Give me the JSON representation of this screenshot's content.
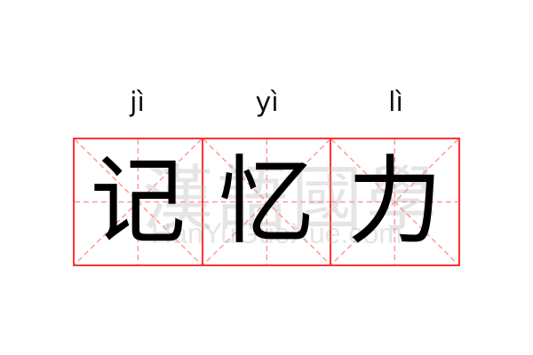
{
  "words": [
    {
      "pinyin": "jì",
      "char": "记"
    },
    {
      "pinyin": "yì",
      "char": "忆"
    },
    {
      "pinyin": "lì",
      "char": "力"
    }
  ],
  "watermark": {
    "cn": "漢語國學",
    "en": "HanYuGuoXue.com"
  },
  "colors": {
    "grid": "#ff3333",
    "guide": "#ff9999",
    "text": "#000000"
  }
}
